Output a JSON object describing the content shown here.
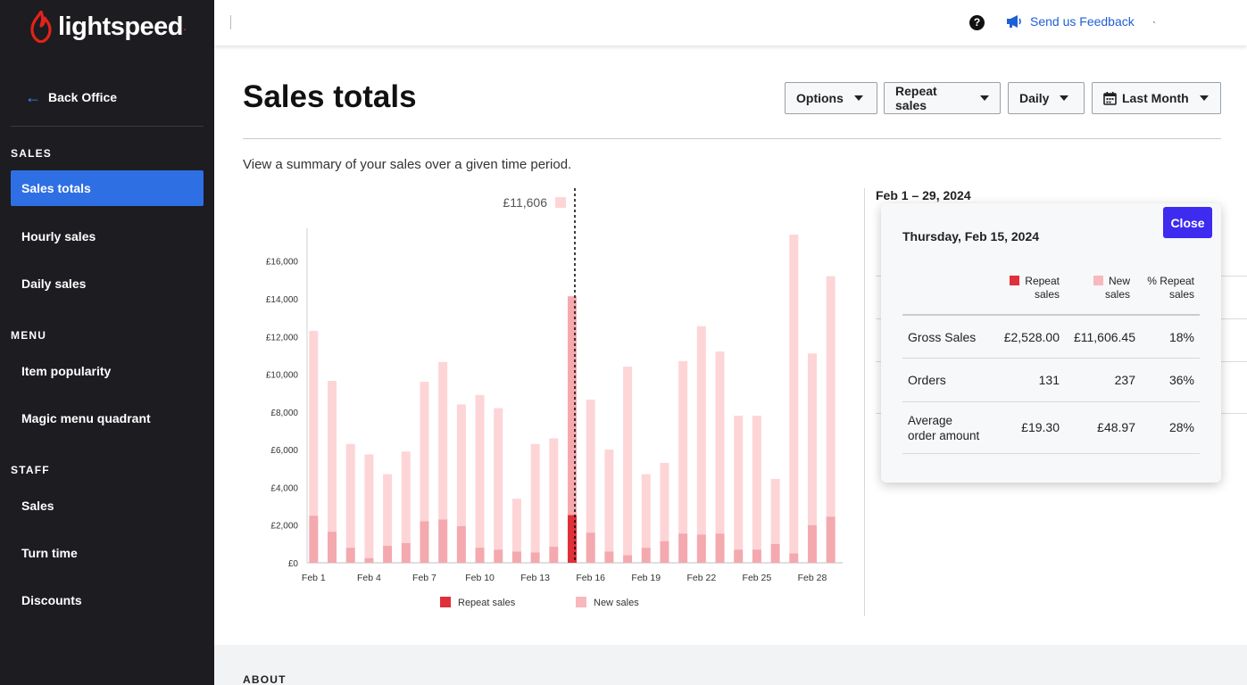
{
  "brand": {
    "name": "lightspeed"
  },
  "sidebar": {
    "back_label": "Back Office",
    "sections": [
      {
        "title": "SALES",
        "items": [
          "Sales totals",
          "Hourly sales",
          "Daily sales"
        ]
      },
      {
        "title": "MENU",
        "items": [
          "Item popularity",
          "Magic menu quadrant"
        ]
      },
      {
        "title": "STAFF",
        "items": [
          "Sales",
          "Turn time",
          "Discounts"
        ]
      }
    ],
    "active_item": "Sales totals"
  },
  "topbar": {
    "help_icon": "?",
    "feedback_label": "Send us Feedback",
    "tick": "`"
  },
  "page": {
    "title": "Sales totals",
    "summary": "View a summary of your sales over a given time period.",
    "filters": {
      "options": "Options",
      "sales_type": "Repeat sales",
      "interval": "Daily",
      "period": "Last Month"
    },
    "range_label": "Feb 1 – 29, 2024",
    "about_label": "ABOUT"
  },
  "tooltip": {
    "date": "Thursday, Feb 15, 2024",
    "close_label": "Close",
    "columns": [
      {
        "line1": "Repeat",
        "line2": "sales",
        "swatch": "#e0303a"
      },
      {
        "line1": "New",
        "line2": "sales",
        "swatch": "#f7b9bd"
      },
      {
        "line1": "% Repeat",
        "line2": "sales"
      }
    ],
    "rows": [
      {
        "label": "Gross Sales",
        "repeat": "£2,528.00",
        "new": "£11,606.45",
        "pct": "18%"
      },
      {
        "label": "Orders",
        "repeat": "131",
        "new": "237",
        "pct": "36%"
      },
      {
        "label_line1": "Average",
        "label_line2": "order amount",
        "repeat": "£19.30",
        "new": "£48.97",
        "pct": "28%"
      }
    ]
  },
  "chart_data": {
    "type": "bar",
    "stacked": true,
    "categories": [
      "Feb 1",
      "Feb 2",
      "Feb 3",
      "Feb 4",
      "Feb 5",
      "Feb 6",
      "Feb 7",
      "Feb 8",
      "Feb 9",
      "Feb 10",
      "Feb 11",
      "Feb 12",
      "Feb 13",
      "Feb 14",
      "Feb 15",
      "Feb 16",
      "Feb 17",
      "Feb 18",
      "Feb 19",
      "Feb 20",
      "Feb 21",
      "Feb 22",
      "Feb 23",
      "Feb 24",
      "Feb 25",
      "Feb 26",
      "Feb 27",
      "Feb 28",
      "Feb 29"
    ],
    "tick_labels": [
      "Feb 1",
      "Feb 4",
      "Feb 7",
      "Feb 10",
      "Feb 13",
      "Feb 16",
      "Feb 19",
      "Feb 22",
      "Feb 25",
      "Feb 28"
    ],
    "series": [
      {
        "name": "Repeat sales",
        "color": "#f4a9ae",
        "highlight_color": "#e0303a",
        "values": [
          2500,
          1650,
          800,
          250,
          900,
          1050,
          2200,
          2300,
          1950,
          800,
          700,
          600,
          550,
          850,
          2528,
          1600,
          600,
          400,
          800,
          1150,
          1550,
          1500,
          1550,
          700,
          700,
          1000,
          500,
          2000,
          2450
        ]
      },
      {
        "name": "New sales",
        "color": "#fdd5d7",
        "values": [
          9800,
          8000,
          5500,
          5500,
          3800,
          4850,
          7400,
          8350,
          6450,
          8100,
          7500,
          2800,
          5750,
          5750,
          11606,
          7050,
          5400,
          10000,
          3900,
          4150,
          9150,
          11050,
          9650,
          7100,
          7100,
          3450,
          16900,
          9100,
          12750
        ]
      }
    ],
    "highlight_index": 14,
    "highlight_label": "£11,606",
    "y_ticks": [
      "£0",
      "£2,000",
      "£4,000",
      "£6,000",
      "£8,000",
      "£10,000",
      "£12,000",
      "£14,000",
      "£16,000"
    ],
    "ylim": [
      0,
      17500
    ],
    "legend": {
      "position": "bottom",
      "items": [
        "Repeat sales",
        "New sales"
      ]
    },
    "grid": false
  }
}
